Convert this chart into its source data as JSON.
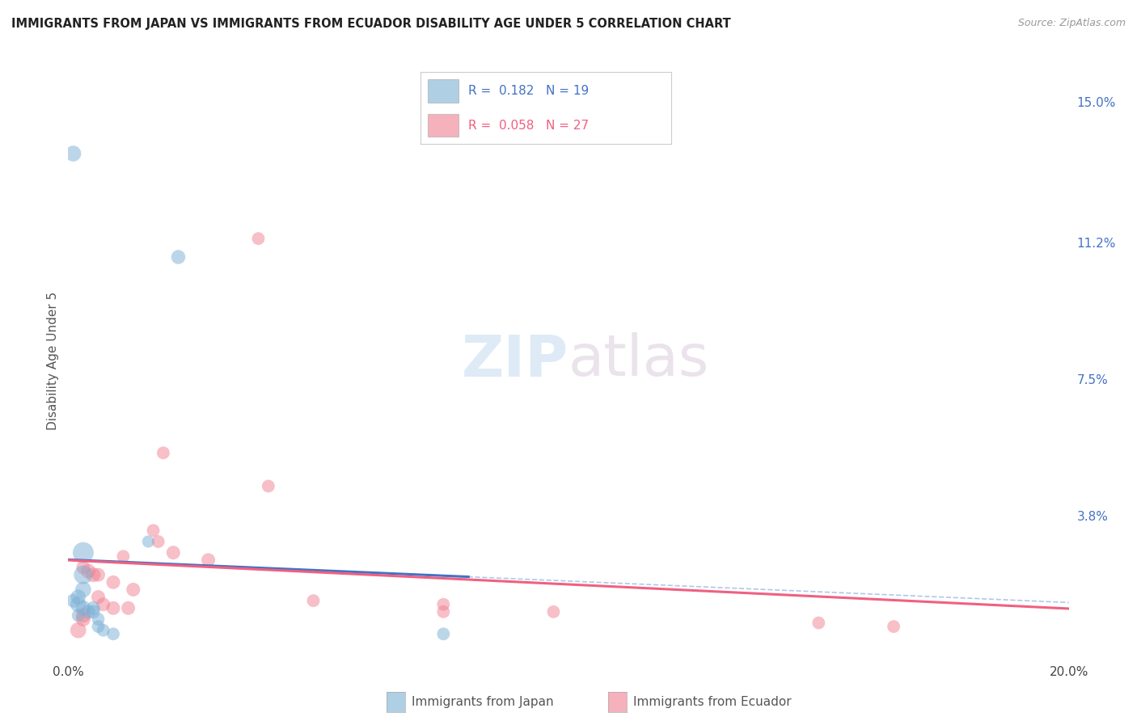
{
  "title": "IMMIGRANTS FROM JAPAN VS IMMIGRANTS FROM ECUADOR DISABILITY AGE UNDER 5 CORRELATION CHART",
  "source": "Source: ZipAtlas.com",
  "ylabel": "Disability Age Under 5",
  "xlim": [
    0.0,
    0.2
  ],
  "ylim": [
    0.0,
    0.16
  ],
  "xticks": [
    0.0,
    0.05,
    0.1,
    0.15,
    0.2
  ],
  "xtick_labels": [
    "0.0%",
    "",
    "",
    "",
    "20.0%"
  ],
  "yticks_right": [
    0.0,
    0.038,
    0.075,
    0.112,
    0.15
  ],
  "ytick_labels_right": [
    "",
    "3.8%",
    "7.5%",
    "11.2%",
    "15.0%"
  ],
  "background_color": "#ffffff",
  "grid_color": "#dddddd",
  "japan_color": "#7bafd4",
  "ecuador_color": "#f08090",
  "japan_line_color": "#4472C4",
  "ecuador_line_color": "#f06080",
  "dashed_line_color": "#b0c8e8",
  "japan_R": "0.182",
  "japan_N": "19",
  "ecuador_R": "0.058",
  "ecuador_N": "27",
  "legend_label_japan": "Immigrants from Japan",
  "legend_label_ecuador": "Immigrants from Ecuador",
  "japan_points": [
    [
      0.001,
      0.136
    ],
    [
      0.022,
      0.108
    ],
    [
      0.016,
      0.031
    ],
    [
      0.003,
      0.028
    ],
    [
      0.003,
      0.022
    ],
    [
      0.003,
      0.018
    ],
    [
      0.002,
      0.016
    ],
    [
      0.001,
      0.015
    ],
    [
      0.002,
      0.014
    ],
    [
      0.003,
      0.013
    ],
    [
      0.005,
      0.013
    ],
    [
      0.004,
      0.012
    ],
    [
      0.005,
      0.012
    ],
    [
      0.002,
      0.011
    ],
    [
      0.006,
      0.01
    ],
    [
      0.006,
      0.008
    ],
    [
      0.007,
      0.007
    ],
    [
      0.009,
      0.006
    ],
    [
      0.075,
      0.006
    ]
  ],
  "ecuador_points": [
    [
      0.038,
      0.113
    ],
    [
      0.019,
      0.055
    ],
    [
      0.04,
      0.046
    ],
    [
      0.017,
      0.034
    ],
    [
      0.018,
      0.031
    ],
    [
      0.021,
      0.028
    ],
    [
      0.011,
      0.027
    ],
    [
      0.028,
      0.026
    ],
    [
      0.003,
      0.024
    ],
    [
      0.004,
      0.023
    ],
    [
      0.005,
      0.022
    ],
    [
      0.006,
      0.022
    ],
    [
      0.009,
      0.02
    ],
    [
      0.013,
      0.018
    ],
    [
      0.006,
      0.016
    ],
    [
      0.049,
      0.015
    ],
    [
      0.007,
      0.014
    ],
    [
      0.075,
      0.014
    ],
    [
      0.009,
      0.013
    ],
    [
      0.012,
      0.013
    ],
    [
      0.075,
      0.012
    ],
    [
      0.097,
      0.012
    ],
    [
      0.003,
      0.011
    ],
    [
      0.003,
      0.01
    ],
    [
      0.15,
      0.009
    ],
    [
      0.165,
      0.008
    ],
    [
      0.002,
      0.007
    ]
  ],
  "japan_sizes": [
    200,
    160,
    120,
    350,
    280,
    200,
    180,
    150,
    200,
    180,
    150,
    150,
    150,
    130,
    130,
    130,
    130,
    130,
    130
  ],
  "ecuador_sizes": [
    130,
    130,
    130,
    130,
    130,
    150,
    130,
    150,
    150,
    170,
    170,
    150,
    150,
    150,
    150,
    130,
    150,
    130,
    150,
    150,
    130,
    130,
    170,
    170,
    130,
    130,
    200
  ]
}
